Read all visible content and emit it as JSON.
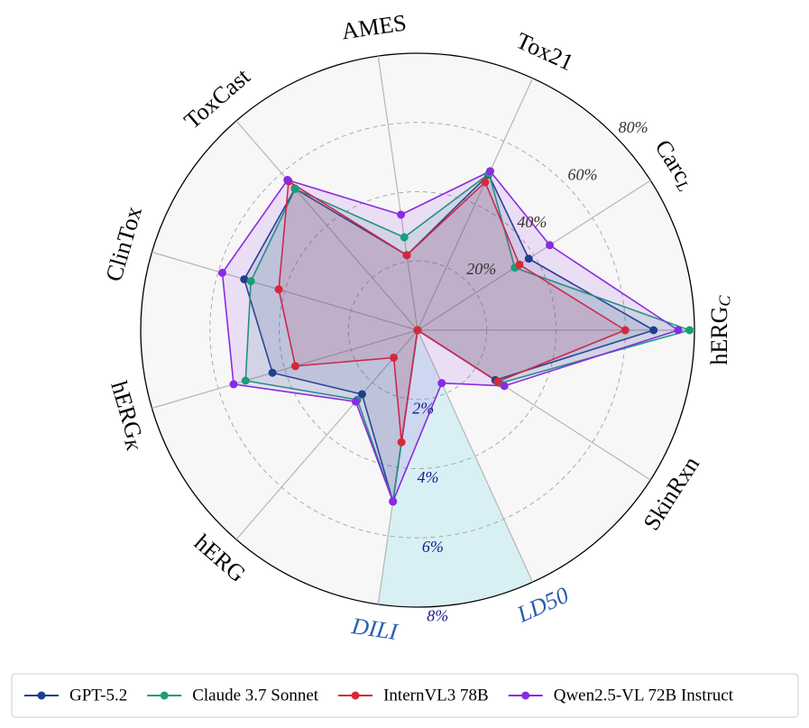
{
  "chart_data": {
    "type": "radar",
    "categories": [
      "hERG_C",
      "Carc_L",
      "Tox21",
      "AMES",
      "ToxCast",
      "ClinTox",
      "hERG_K",
      "hERG",
      "DILI",
      "LD50",
      "SkinRxn"
    ],
    "series": [
      {
        "name": "GPT-5.2",
        "color": "#1f3f8f",
        "values": [
          68.2,
          38.2,
          49.4,
          21.9,
          54.1,
          52.2,
          43.7,
          24.5,
          5.0,
          0,
          26.7
        ]
      },
      {
        "name": "Claude 3.7 Sonnet",
        "color": "#1a9e77",
        "values": [
          78.6,
          33.4,
          49.7,
          27.1,
          54.0,
          50.2,
          51.8,
          26.6,
          5.0,
          0,
          28.3
        ]
      },
      {
        "name": "InternVL3 78B",
        "color": "#d62839",
        "values": [
          60.0,
          35.0,
          47.0,
          21.9,
          56.9,
          41.8,
          36.8,
          10.5,
          3.27,
          0,
          27.5
        ]
      },
      {
        "name": "Qwen2.5-VL 72B Instruct",
        "color": "#8a2be2",
        "values": [
          75.3,
          45.4,
          50.5,
          33.7,
          57.4,
          58.8,
          55.4,
          27.3,
          5.0,
          1.68,
          29.8
        ]
      }
    ],
    "ylim": [
      0,
      80
    ],
    "yticks": [
      {
        "value": 20,
        "label": "20%"
      },
      {
        "value": 40,
        "label": "40%"
      },
      {
        "value": 60,
        "label": "60%"
      },
      {
        "value": 80,
        "label": "80%"
      }
    ],
    "y2lim": [
      0,
      8
    ],
    "y2ticks": [
      {
        "value": 2,
        "label": "2%"
      },
      {
        "value": 4,
        "label": "4%"
      },
      {
        "value": 6,
        "label": "6%"
      },
      {
        "value": 8,
        "label": "8%"
      }
    ],
    "y2_categories": [
      "DILI",
      "LD50"
    ],
    "y2_color": "#2a5db0",
    "grid": true,
    "legend": "bottom"
  }
}
